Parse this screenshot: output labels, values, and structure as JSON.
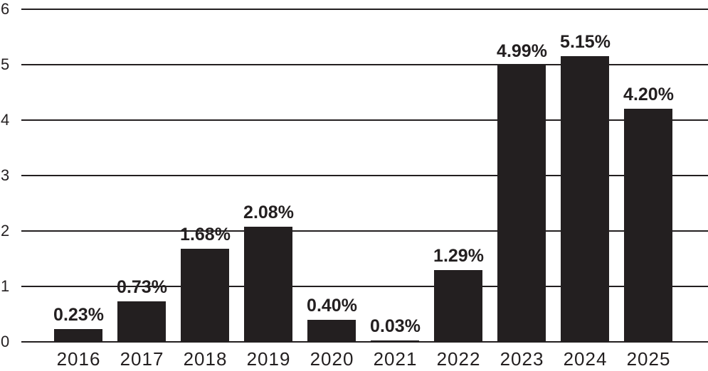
{
  "chart_data": {
    "type": "bar",
    "categories": [
      "2016",
      "2017",
      "2018",
      "2019",
      "2020",
      "2021",
      "2022",
      "2023",
      "2024",
      "2025"
    ],
    "values": [
      0.23,
      0.73,
      1.68,
      2.08,
      0.4,
      0.03,
      1.29,
      4.99,
      5.15,
      4.2
    ],
    "value_labels": [
      "0.23%",
      "0.73%",
      "1.68%",
      "2.08%",
      "0.40%",
      "0.03%",
      "1.29%",
      "4.99%",
      "5.15%",
      "4.20%"
    ],
    "title": "",
    "xlabel": "",
    "ylabel": "",
    "ylim": [
      0,
      6
    ],
    "yticks": [
      0,
      1,
      2,
      3,
      4,
      5,
      6
    ],
    "grid": true,
    "legend": false,
    "bar_color": "#231f20",
    "gridline_color": "#231f20",
    "text_color": "#231f20",
    "background_color": "#ffffff"
  }
}
